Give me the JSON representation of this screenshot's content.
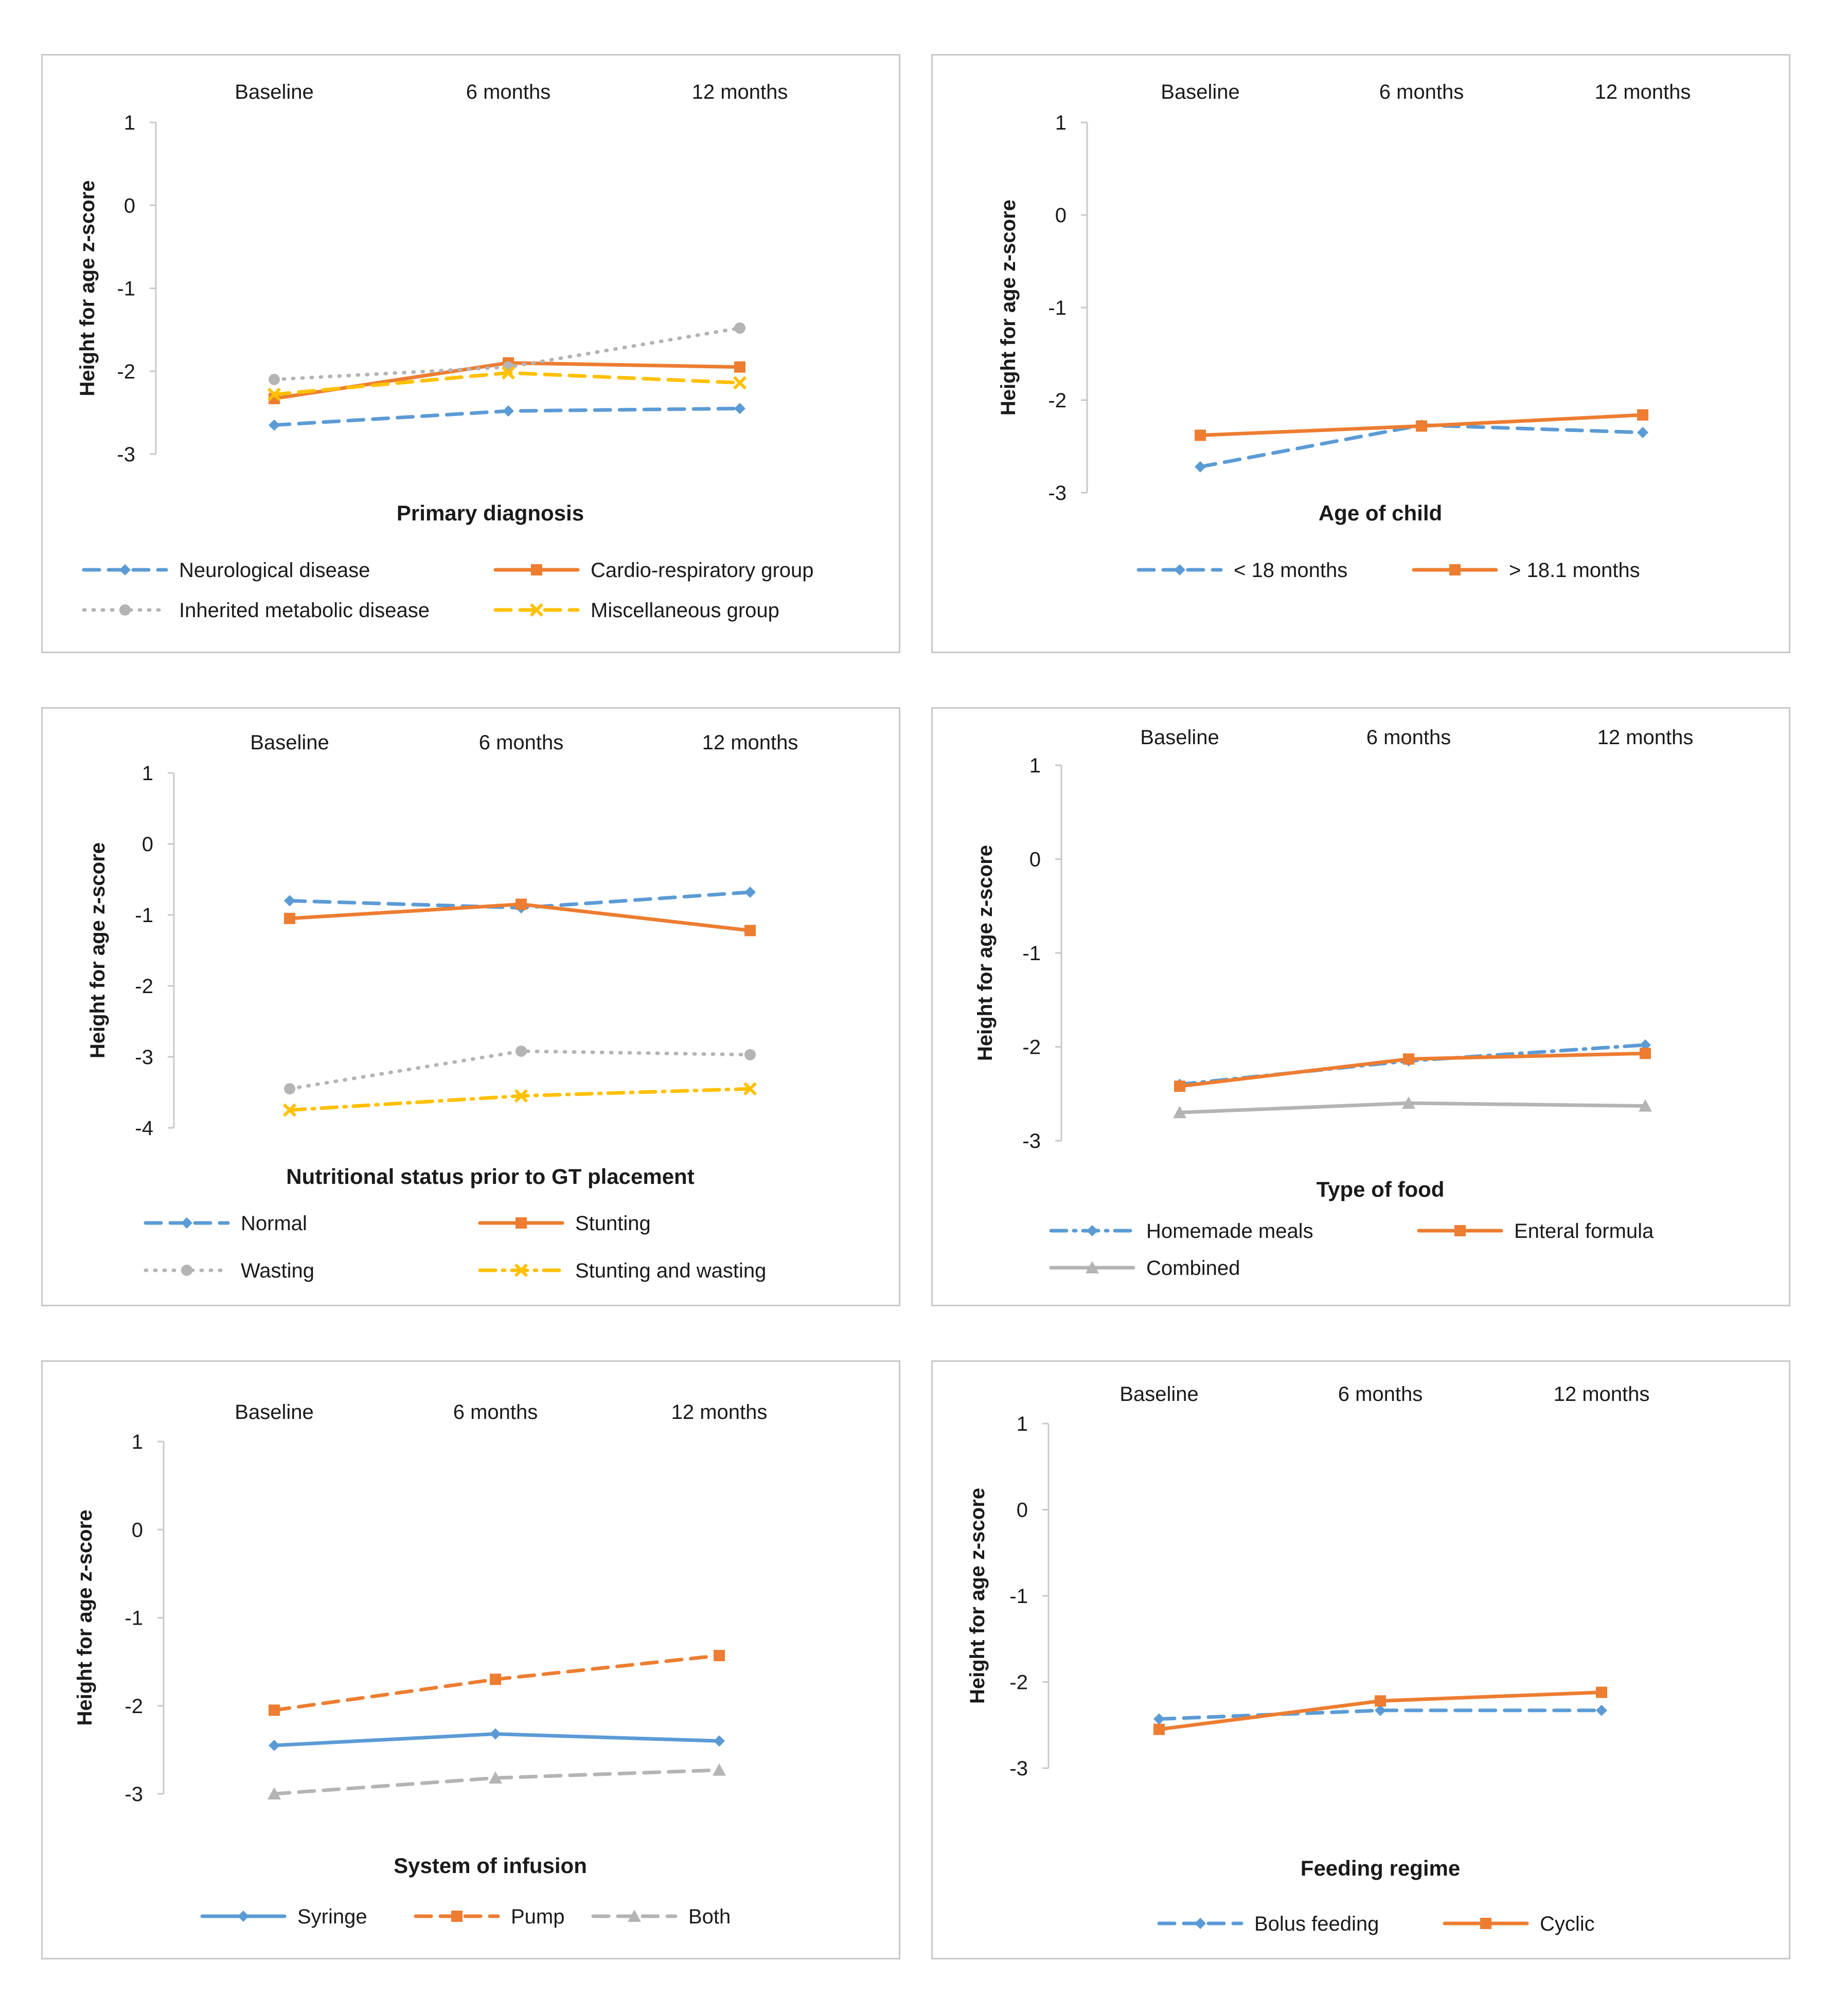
{
  "chart_data": [
    {
      "type": "line",
      "title": "Primary diagnosis",
      "ylabel": "Height  for age z-score",
      "categories": [
        "Baseline",
        "6 months",
        "12 months"
      ],
      "yticks": [
        "1",
        "0",
        "-1",
        "-2",
        "-3"
      ],
      "ylim": [
        -3,
        1
      ],
      "series": [
        {
          "name": "Neurological disease",
          "values": [
            -2.65,
            -2.48,
            -2.45
          ],
          "color": "#5b9bd5",
          "dash": "dashed",
          "marker": "diamond"
        },
        {
          "name": "Cardio-respiratory group",
          "values": [
            -2.33,
            -1.9,
            -1.95
          ],
          "color": "#ed7d31",
          "dash": "solid",
          "marker": "square"
        },
        {
          "name": "Inherited metabolic disease",
          "values": [
            -2.1,
            -1.95,
            -1.48
          ],
          "color": "#b4b4b4",
          "dash": "dotted",
          "marker": "circle"
        },
        {
          "name": "Miscellaneous group",
          "values": [
            -2.28,
            -2.02,
            -2.14
          ],
          "color": "#ffc000",
          "dash": "dashed",
          "marker": "x"
        }
      ]
    },
    {
      "type": "line",
      "title": "Age of child",
      "ylabel": "Height for age z-score",
      "categories": [
        "Baseline",
        "6 months",
        "12 months"
      ],
      "yticks": [
        "1",
        "0",
        "-1",
        "-2",
        "-3"
      ],
      "ylim": [
        -3,
        1
      ],
      "series": [
        {
          "name": "< 18 months",
          "values": [
            -2.72,
            -2.27,
            -2.35
          ],
          "color": "#5b9bd5",
          "dash": "dashed",
          "marker": "diamond"
        },
        {
          "name": "> 18.1 months",
          "values": [
            -2.38,
            -2.28,
            -2.16
          ],
          "color": "#ed7d31",
          "dash": "solid",
          "marker": "square"
        }
      ]
    },
    {
      "type": "line",
      "title": "Nutritional status prior to GT placement",
      "ylabel": "Height for age z-score",
      "categories": [
        "Baseline",
        "6 months",
        "12 months"
      ],
      "yticks": [
        "1",
        "0",
        "-1",
        "-2",
        "-3",
        "-4"
      ],
      "ylim": [
        -4,
        1
      ],
      "series": [
        {
          "name": "Normal",
          "values": [
            -0.8,
            -0.9,
            -0.68
          ],
          "color": "#5b9bd5",
          "dash": "dashed",
          "marker": "diamond"
        },
        {
          "name": "Stunting",
          "values": [
            -1.05,
            -0.85,
            -1.22
          ],
          "color": "#ed7d31",
          "dash": "solid",
          "marker": "square"
        },
        {
          "name": "Wasting",
          "values": [
            -3.45,
            -2.92,
            -2.97
          ],
          "color": "#b4b4b4",
          "dash": "dotted",
          "marker": "circle"
        },
        {
          "name": "Stunting and wasting",
          "values": [
            -3.75,
            -3.55,
            -3.45
          ],
          "color": "#ffc000",
          "dash": "dashdot",
          "marker": "x"
        }
      ]
    },
    {
      "type": "line",
      "title": "Type of food",
      "ylabel": "Height for age z-score",
      "categories": [
        "Baseline",
        "6 months",
        "12 months"
      ],
      "yticks": [
        "1",
        "0",
        "-1",
        "-2",
        "-3"
      ],
      "ylim": [
        -3,
        1
      ],
      "series": [
        {
          "name": "Homemade meals",
          "values": [
            -2.4,
            -2.15,
            -1.98
          ],
          "color": "#5b9bd5",
          "dash": "dashdot",
          "marker": "diamond"
        },
        {
          "name": "Enteral formula",
          "values": [
            -2.42,
            -2.13,
            -2.07
          ],
          "color": "#ed7d31",
          "dash": "solid",
          "marker": "square"
        },
        {
          "name": "Combined",
          "values": [
            -2.7,
            -2.6,
            -2.63
          ],
          "color": "#b4b4b4",
          "dash": "solid",
          "marker": "triangle"
        }
      ]
    },
    {
      "type": "line",
      "title": "System of infusion",
      "ylabel": "Height for age z-score",
      "categories": [
        "Baseline",
        "6 months",
        "12 months"
      ],
      "yticks": [
        "1",
        "0",
        "-1",
        "-2",
        "-3"
      ],
      "ylim": [
        -3,
        1
      ],
      "series": [
        {
          "name": "Syringe",
          "values": [
            -2.45,
            -2.32,
            -2.4
          ],
          "color": "#5b9bd5",
          "dash": "solid",
          "marker": "diamond"
        },
        {
          "name": "Pump",
          "values": [
            -2.05,
            -1.7,
            -1.43
          ],
          "color": "#ed7d31",
          "dash": "dashed",
          "marker": "square"
        },
        {
          "name": "Both",
          "values": [
            -3.0,
            -2.82,
            -2.73
          ],
          "color": "#b4b4b4",
          "dash": "dashed",
          "marker": "triangle"
        }
      ]
    },
    {
      "type": "line",
      "title": "Feeding regime",
      "ylabel": "Height for age z-score",
      "categories": [
        "Baseline",
        "6 months",
        "12 months"
      ],
      "yticks": [
        "1",
        "0",
        "-1",
        "-2",
        "-3"
      ],
      "ylim": [
        -3,
        1
      ],
      "series": [
        {
          "name": "Bolus feeding",
          "values": [
            -2.43,
            -2.33,
            -2.33
          ],
          "color": "#5b9bd5",
          "dash": "dashed",
          "marker": "diamond"
        },
        {
          "name": "Cyclic",
          "values": [
            -2.55,
            -2.22,
            -2.12
          ],
          "color": "#ed7d31",
          "dash": "solid",
          "marker": "square"
        }
      ]
    }
  ]
}
